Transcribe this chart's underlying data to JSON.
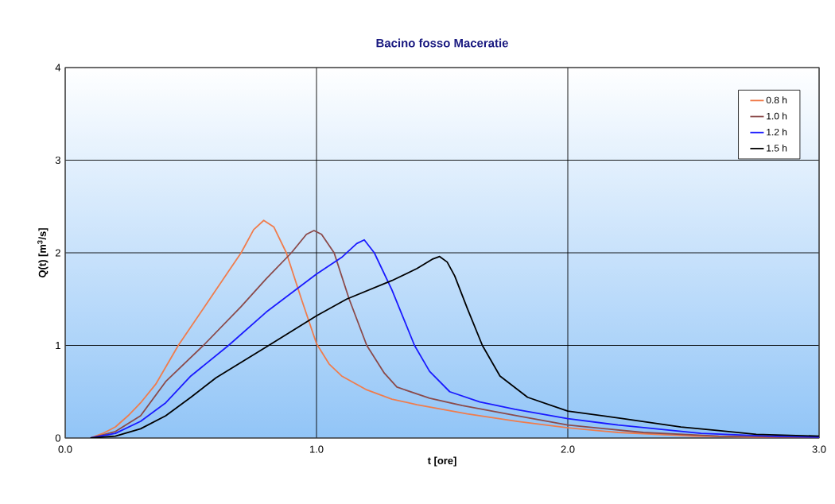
{
  "chart_data": {
    "type": "line",
    "title": "Bacino fosso Maceratie",
    "xlabel": "t  [ore]",
    "ylabel": "Q(t)  [m$^{3}$/s]",
    "xlim": [
      0,
      3
    ],
    "ylim": [
      0,
      4
    ],
    "xticks": [
      {
        "value": 0,
        "label": "0.0"
      },
      {
        "value": 1,
        "label": "1.0"
      },
      {
        "value": 2,
        "label": "2.0"
      },
      {
        "value": 3,
        "label": "3.0"
      }
    ],
    "yticks": [
      0,
      1,
      2,
      3,
      4
    ],
    "grid": true,
    "legend": "top right",
    "marker": "none",
    "line_style": "solid",
    "series": [
      {
        "name": "0.8 h",
        "color": "#f07c4c",
        "x": [
          0.1,
          0.15,
          0.2,
          0.25,
          0.3,
          0.36,
          0.45,
          0.55,
          0.65,
          0.7,
          0.75,
          0.79,
          0.83,
          0.88,
          0.94,
          1.0,
          1.05,
          1.1,
          1.2,
          1.3,
          1.4,
          1.5,
          1.6,
          1.8,
          2.0,
          2.2,
          2.5,
          3.0
        ],
        "values": [
          0,
          0.05,
          0.12,
          0.24,
          0.38,
          0.58,
          1.0,
          1.4,
          1.8,
          2.0,
          2.25,
          2.35,
          2.28,
          2.0,
          1.5,
          1.02,
          0.8,
          0.67,
          0.52,
          0.42,
          0.36,
          0.31,
          0.26,
          0.18,
          0.11,
          0.06,
          0.02,
          0
        ]
      },
      {
        "name": "1.0 h",
        "color": "#8b4a4a",
        "x": [
          0.1,
          0.2,
          0.3,
          0.4,
          0.55,
          0.7,
          0.8,
          0.9,
          0.96,
          0.99,
          1.02,
          1.07,
          1.13,
          1.2,
          1.27,
          1.32,
          1.45,
          1.58,
          1.8,
          2.0,
          2.3,
          2.6,
          3.0
        ],
        "values": [
          0,
          0.07,
          0.24,
          0.61,
          1.0,
          1.42,
          1.72,
          2.0,
          2.2,
          2.24,
          2.2,
          2.0,
          1.5,
          1.0,
          0.7,
          0.55,
          0.43,
          0.35,
          0.24,
          0.14,
          0.06,
          0.02,
          0
        ]
      },
      {
        "name": "1.2 h",
        "color": "#1a1aff",
        "x": [
          0.1,
          0.2,
          0.3,
          0.4,
          0.5,
          0.65,
          0.8,
          1.0,
          1.1,
          1.16,
          1.19,
          1.23,
          1.3,
          1.39,
          1.45,
          1.53,
          1.65,
          1.79,
          2.0,
          2.2,
          2.53,
          2.8,
          3.0
        ],
        "values": [
          0,
          0.05,
          0.18,
          0.38,
          0.67,
          1.0,
          1.36,
          1.77,
          1.95,
          2.1,
          2.14,
          2.0,
          1.6,
          1.0,
          0.72,
          0.5,
          0.39,
          0.31,
          0.21,
          0.14,
          0.05,
          0.02,
          0.01
        ]
      },
      {
        "name": "1.5 h",
        "color": "#000000",
        "x": [
          0.1,
          0.2,
          0.3,
          0.4,
          0.5,
          0.6,
          0.81,
          1.0,
          1.12,
          1.3,
          1.4,
          1.46,
          1.49,
          1.52,
          1.55,
          1.6,
          1.66,
          1.73,
          1.84,
          2.0,
          2.22,
          2.45,
          2.6,
          2.75,
          3.0
        ],
        "values": [
          0,
          0.02,
          0.1,
          0.24,
          0.44,
          0.65,
          1.0,
          1.32,
          1.5,
          1.7,
          1.83,
          1.93,
          1.96,
          1.9,
          1.75,
          1.4,
          1.0,
          0.67,
          0.44,
          0.29,
          0.21,
          0.12,
          0.08,
          0.04,
          0.02
        ]
      }
    ]
  }
}
